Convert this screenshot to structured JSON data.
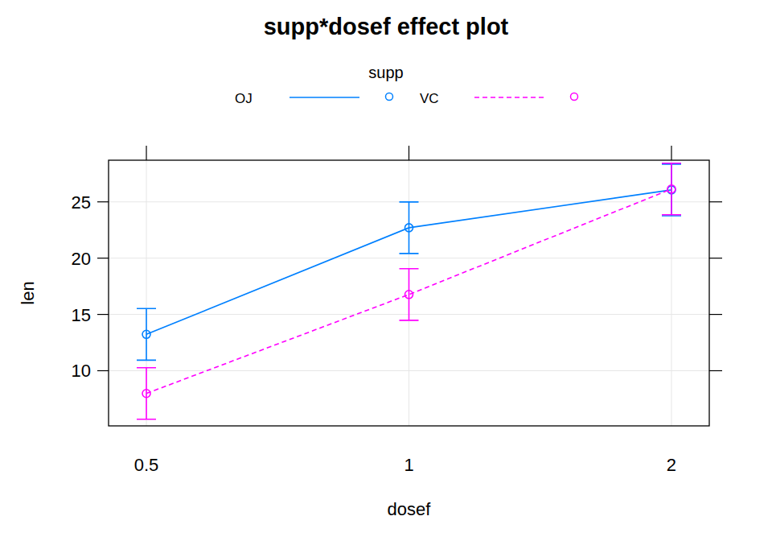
{
  "chart_data": {
    "type": "line",
    "title": "supp*dosef effect plot",
    "x_label": "dosef",
    "y_label": "len",
    "legend_title": "supp",
    "legend": "top",
    "categories": [
      "0.5",
      "1",
      "2"
    ],
    "series": [
      {
        "name": "OJ",
        "color": "#0080ff",
        "line_style": "solid",
        "marker": "circle",
        "values": [
          13.23,
          22.7,
          26.06
        ],
        "errors": [
          2.29,
          2.29,
          2.29
        ]
      },
      {
        "name": "VC",
        "color": "#ff00ff",
        "line_style": "dashed",
        "marker": "circle",
        "values": [
          7.98,
          16.77,
          26.14
        ],
        "errors": [
          2.29,
          2.29,
          2.29
        ]
      }
    ],
    "ylim": [
      5.1,
      28.7
    ],
    "yticks": [
      10,
      15,
      20,
      25
    ],
    "grid": true
  }
}
